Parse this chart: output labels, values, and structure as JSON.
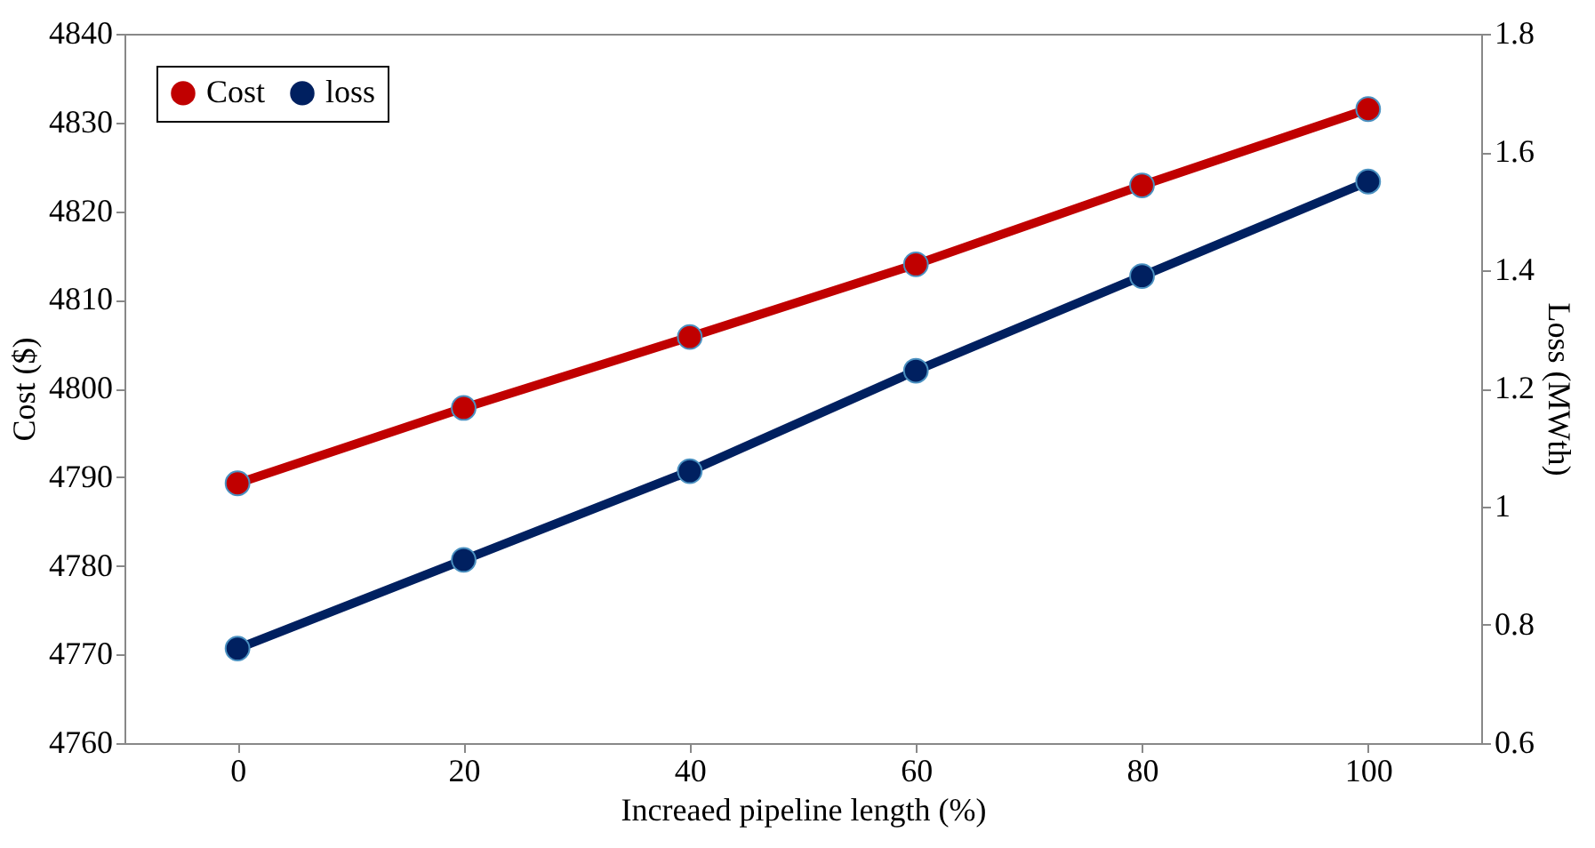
{
  "chart_data": {
    "type": "line",
    "xlabel": "Increaed pipeline length (%)",
    "ylabel": "Cost ($)",
    "y2label": "Loss (MWth)",
    "categories": [
      "0",
      "20",
      "40",
      "60",
      "80",
      "100"
    ],
    "series": [
      {
        "name": "Cost",
        "color": "#c00000",
        "values": [
          4789.3,
          4797.8,
          4805.8,
          4814,
          4822.9,
          4831.5
        ]
      },
      {
        "name": "loss",
        "color": "#002060",
        "axis": "y2",
        "values": [
          0.76,
          0.91,
          1.06,
          1.23,
          1.39,
          1.55
        ]
      }
    ],
    "ylim": [
      4760,
      4840
    ],
    "yticks": [
      4760,
      4770,
      4780,
      4790,
      4800,
      4810,
      4820,
      4830,
      4840
    ],
    "y2lim": [
      0.6,
      1.8
    ],
    "y2ticks": [
      0.6,
      0.8,
      1,
      1.2,
      1.4,
      1.6,
      1.8
    ],
    "marker": "circle",
    "line_style": "solid",
    "grid": false,
    "legend": "top left"
  }
}
